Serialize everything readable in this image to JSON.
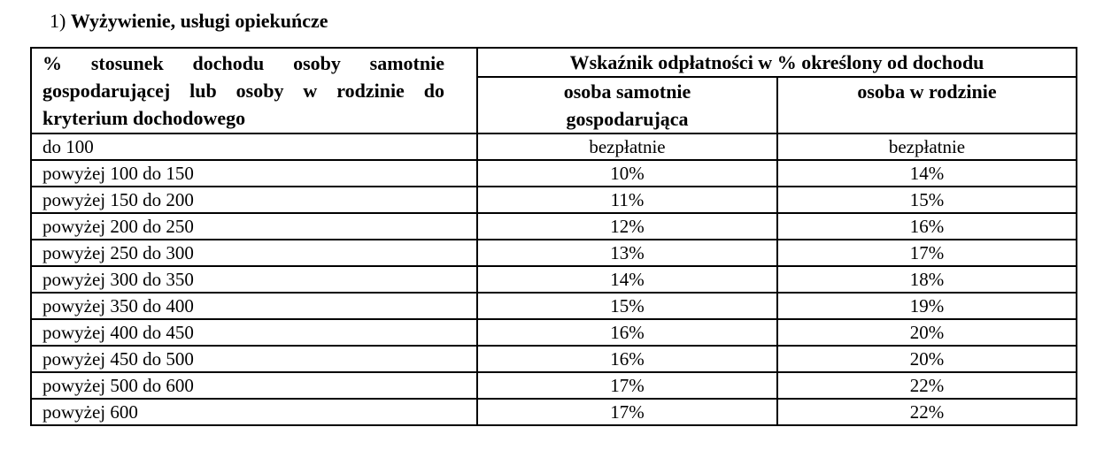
{
  "title": {
    "number": "1)",
    "text": "Wyżywienie, usługi opiekuńcze"
  },
  "table": {
    "header": {
      "income_criterion": "% stosunek dochodu osoby samotnie gospodarującej lub osoby w rodzinie do kryterium dochodowego",
      "payment_indicator": "Wskaźnik odpłatności w % określony od dochodu",
      "single_person": "osoba samotnie\ngospodarująca",
      "person_in_family": "osoba w rodzinie"
    },
    "rows": [
      {
        "range": "do 100",
        "single": "bezpłatnie",
        "family": "bezpłatnie"
      },
      {
        "range": "powyżej 100 do 150",
        "single": "10%",
        "family": "14%"
      },
      {
        "range": "powyżej 150 do 200",
        "single": "11%",
        "family": "15%"
      },
      {
        "range": "powyżej 200 do 250",
        "single": "12%",
        "family": "16%"
      },
      {
        "range": "powyżej 250 do 300",
        "single": "13%",
        "family": "17%"
      },
      {
        "range": "powyżej 300 do 350",
        "single": "14%",
        "family": "18%"
      },
      {
        "range": "powyżej 350 do 400",
        "single": "15%",
        "family": "19%"
      },
      {
        "range": "powyżej 400 do 450",
        "single": "16%",
        "family": "20%"
      },
      {
        "range": "powyżej 450 do 500",
        "single": "16%",
        "family": "20%"
      },
      {
        "range": "powyżej 500 do 600",
        "single": "17%",
        "family": "22%"
      },
      {
        "range": "powyżej 600",
        "single": "17%",
        "family": "22%"
      }
    ]
  },
  "colors": {
    "text": "#000000",
    "border": "#000000",
    "background": "#ffffff"
  }
}
